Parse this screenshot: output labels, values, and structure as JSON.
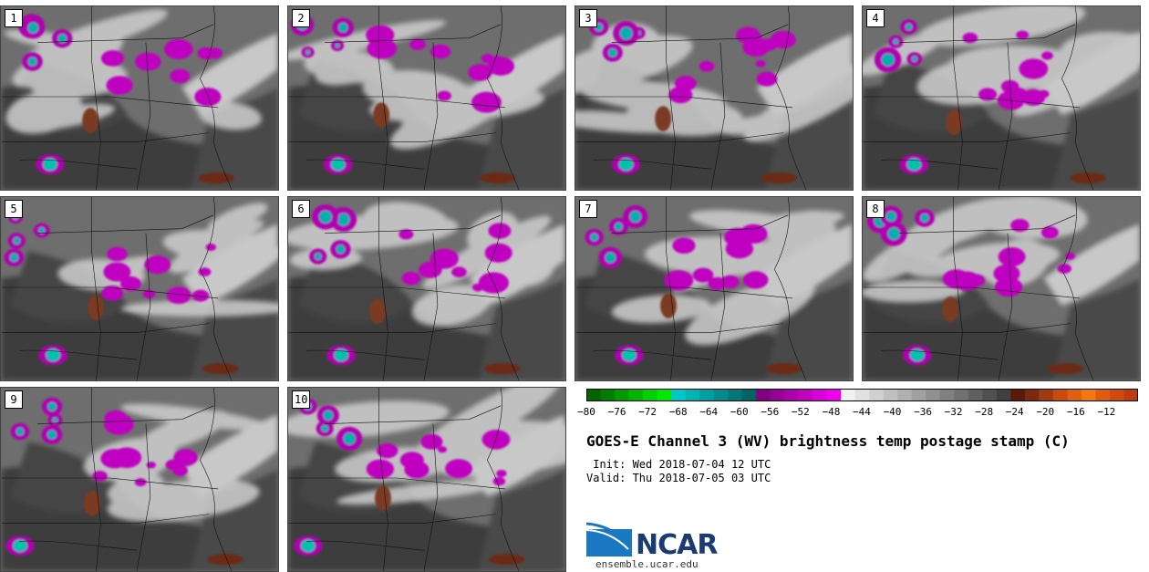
{
  "panels": [
    {
      "label": "1"
    },
    {
      "label": "2"
    },
    {
      "label": "3"
    },
    {
      "label": "4"
    },
    {
      "label": "5"
    },
    {
      "label": "6"
    },
    {
      "label": "7"
    },
    {
      "label": "8"
    },
    {
      "label": "9"
    },
    {
      "label": "10"
    }
  ],
  "colorbar": {
    "ticks": [
      "−80",
      "−76",
      "−72",
      "−68",
      "−64",
      "−60",
      "−56",
      "−52",
      "−48",
      "−44",
      "−40",
      "−36",
      "−32",
      "−28",
      "−24",
      "−20",
      "−16",
      "−12"
    ],
    "colors": [
      "#006400",
      "#007d00",
      "#009900",
      "#00b400",
      "#00d000",
      "#00e800",
      "#00c8c8",
      "#00b4b4",
      "#00a0a0",
      "#008c8c",
      "#007878",
      "#006464",
      "#800080",
      "#960096",
      "#ac00ac",
      "#c200c2",
      "#d800d8",
      "#ee00ee",
      "#f0f0f0",
      "#e0e0e0",
      "#d0d0d0",
      "#c0c0c0",
      "#b0b0b0",
      "#a0a0a0",
      "#909090",
      "#808080",
      "#707070",
      "#606060",
      "#505050",
      "#404040",
      "#5a1a0a",
      "#7a2a10",
      "#a03a10",
      "#c84c10",
      "#e06010",
      "#f07a10",
      "#e05a10",
      "#d04a10",
      "#c03a10"
    ]
  },
  "title": "GOES-E Channel 3 (WV) brightness temp postage stamp (C)",
  "init": " Init: Wed 2018-07-04 12 UTC",
  "valid": "Valid: Thu 2018-07-05 03 UTC",
  "logo": {
    "name": "NCAR",
    "url": "ensemble.ucar.edu"
  }
}
